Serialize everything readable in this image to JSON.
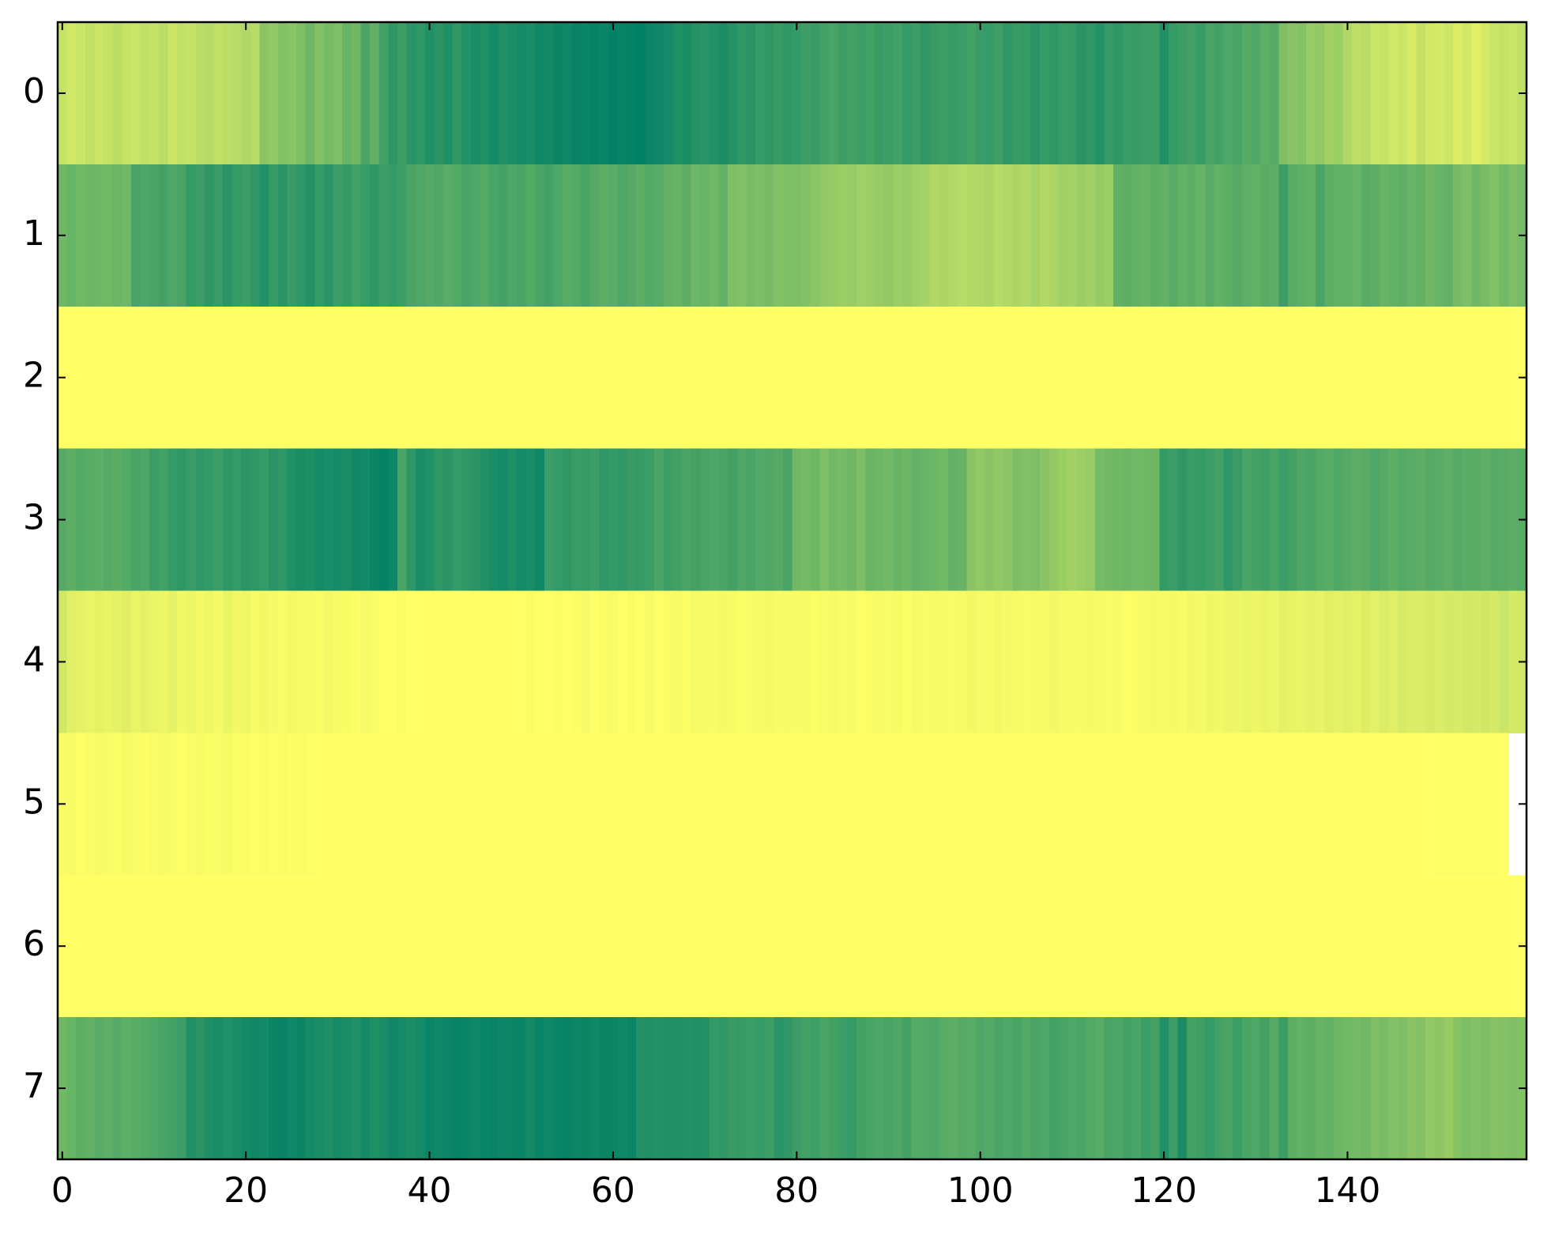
{
  "chart_data": {
    "type": "heatmap",
    "colormap": "summer",
    "xlim": [
      -0.5,
      159.5
    ],
    "ylim": [
      7.5,
      -0.5
    ],
    "xticks": [
      0,
      20,
      40,
      60,
      80,
      100,
      120,
      140
    ],
    "yticks": [
      0,
      1,
      2,
      3,
      4,
      5,
      6,
      7
    ],
    "z": [
      [
        0.78,
        0.82,
        0.8,
        0.76,
        0.8,
        0.78,
        0.74,
        0.78,
        0.8,
        0.76,
        0.78,
        0.74,
        0.8,
        0.76,
        0.78,
        0.74,
        0.72,
        0.76,
        0.74,
        0.72,
        0.7,
        0.72,
        0.55,
        0.58,
        0.52,
        0.55,
        0.5,
        0.44,
        0.52,
        0.48,
        0.5,
        0.42,
        0.45,
        0.3,
        0.4,
        0.28,
        0.2,
        0.25,
        0.18,
        0.2,
        0.15,
        0.18,
        0.14,
        0.2,
        0.16,
        0.12,
        0.15,
        0.1,
        0.14,
        0.12,
        0.1,
        0.12,
        0.08,
        0.1,
        0.06,
        0.08,
        0.05,
        0.06,
        0.04,
        0.06,
        0.03,
        0.05,
        0.04,
        0.02,
        0.06,
        0.08,
        0.1,
        0.14,
        0.12,
        0.16,
        0.18,
        0.15,
        0.12,
        0.16,
        0.2,
        0.18,
        0.22,
        0.2,
        0.24,
        0.2,
        0.22,
        0.26,
        0.24,
        0.28,
        0.3,
        0.26,
        0.28,
        0.25,
        0.28,
        0.24,
        0.26,
        0.28,
        0.22,
        0.25,
        0.2,
        0.24,
        0.26,
        0.22,
        0.25,
        0.28,
        0.24,
        0.22,
        0.26,
        0.2,
        0.24,
        0.22,
        0.18,
        0.22,
        0.2,
        0.24,
        0.22,
        0.18,
        0.2,
        0.16,
        0.22,
        0.2,
        0.24,
        0.22,
        0.25,
        0.26,
        0.15,
        0.22,
        0.25,
        0.28,
        0.24,
        0.3,
        0.28,
        0.32,
        0.3,
        0.35,
        0.32,
        0.38,
        0.35,
        0.5,
        0.55,
        0.52,
        0.6,
        0.58,
        0.65,
        0.62,
        0.7,
        0.75,
        0.72,
        0.8,
        0.78,
        0.82,
        0.8,
        0.85,
        0.78,
        0.82,
        0.84,
        0.8,
        0.86,
        0.82,
        0.88,
        0.84,
        0.8,
        0.78,
        0.8,
        0.76
      ],
      [
        0.45,
        0.42,
        0.46,
        0.44,
        0.45,
        0.46,
        0.43,
        0.45,
        0.3,
        0.32,
        0.3,
        0.28,
        0.32,
        0.3,
        0.22,
        0.25,
        0.2,
        0.24,
        0.18,
        0.22,
        0.25,
        0.2,
        0.15,
        0.22,
        0.18,
        0.24,
        0.2,
        0.16,
        0.22,
        0.18,
        0.25,
        0.22,
        0.28,
        0.24,
        0.2,
        0.25,
        0.22,
        0.26,
        0.3,
        0.32,
        0.35,
        0.33,
        0.36,
        0.34,
        0.3,
        0.32,
        0.35,
        0.3,
        0.28,
        0.32,
        0.3,
        0.34,
        0.3,
        0.28,
        0.32,
        0.36,
        0.34,
        0.3,
        0.35,
        0.38,
        0.36,
        0.32,
        0.35,
        0.38,
        0.34,
        0.36,
        0.4,
        0.42,
        0.38,
        0.44,
        0.42,
        0.45,
        0.4,
        0.5,
        0.52,
        0.48,
        0.5,
        0.48,
        0.52,
        0.5,
        0.5,
        0.52,
        0.55,
        0.58,
        0.6,
        0.62,
        0.6,
        0.64,
        0.62,
        0.6,
        0.58,
        0.62,
        0.6,
        0.64,
        0.66,
        0.7,
        0.68,
        0.7,
        0.72,
        0.7,
        0.7,
        0.68,
        0.72,
        0.7,
        0.68,
        0.7,
        0.66,
        0.7,
        0.68,
        0.64,
        0.66,
        0.62,
        0.64,
        0.6,
        0.62,
        0.4,
        0.38,
        0.4,
        0.42,
        0.38,
        0.4,
        0.36,
        0.4,
        0.38,
        0.42,
        0.36,
        0.4,
        0.38,
        0.35,
        0.38,
        0.4,
        0.36,
        0.38,
        0.25,
        0.36,
        0.38,
        0.4,
        0.3,
        0.38,
        0.4,
        0.4,
        0.42,
        0.36,
        0.38,
        0.42,
        0.4,
        0.38,
        0.42,
        0.4,
        0.45,
        0.42,
        0.4,
        0.48,
        0.5,
        0.45,
        0.48,
        0.52,
        0.46,
        0.5,
        0.48
      ],
      [
        1,
        1,
        1,
        1,
        1,
        1,
        1,
        1,
        1,
        1,
        1,
        1,
        1,
        1,
        1,
        1,
        1,
        1,
        1,
        1,
        1,
        1,
        1,
        1,
        1,
        1,
        1,
        1,
        1,
        1,
        1,
        1,
        1,
        1,
        1,
        1,
        1,
        1,
        1,
        1,
        1,
        1,
        1,
        1,
        1,
        1,
        1,
        1,
        1,
        1,
        1,
        1,
        1,
        1,
        1,
        1,
        1,
        1,
        1,
        1,
        1,
        1,
        1,
        1,
        1,
        1,
        1,
        1,
        1,
        1,
        1,
        1,
        1,
        1,
        1,
        1,
        1,
        1,
        1,
        1,
        1,
        1,
        1,
        1,
        1,
        1,
        1,
        1,
        1,
        1,
        1,
        1,
        1,
        1,
        1,
        1,
        1,
        1,
        1,
        1,
        1,
        1,
        1,
        1,
        1,
        1,
        1,
        1,
        1,
        1,
        1,
        1,
        1,
        1,
        1,
        1,
        1,
        1,
        1,
        1,
        1,
        1,
        1,
        1,
        1,
        1,
        1,
        1,
        1,
        1,
        1,
        1,
        1,
        1,
        1,
        1,
        1,
        1,
        1,
        1,
        1,
        1,
        1,
        1,
        1,
        1,
        1,
        1,
        1,
        1,
        1,
        1,
        1,
        1,
        1,
        1,
        1,
        1,
        1,
        1
      ],
      [
        0.35,
        0.38,
        0.34,
        0.36,
        0.38,
        0.35,
        0.37,
        0.34,
        0.3,
        0.32,
        0.25,
        0.28,
        0.22,
        0.2,
        0.24,
        0.2,
        0.22,
        0.25,
        0.2,
        0.22,
        0.18,
        0.2,
        0.22,
        0.18,
        0.2,
        0.15,
        0.12,
        0.14,
        0.1,
        0.12,
        0.1,
        0.12,
        0.08,
        0.1,
        0.06,
        0.04,
        0.08,
        0.3,
        0.2,
        0.12,
        0.15,
        0.2,
        0.18,
        0.22,
        0.2,
        0.18,
        0.15,
        0.12,
        0.1,
        0.14,
        0.1,
        0.12,
        0.08,
        0.25,
        0.22,
        0.2,
        0.24,
        0.22,
        0.25,
        0.2,
        0.22,
        0.2,
        0.24,
        0.22,
        0.26,
        0.3,
        0.25,
        0.28,
        0.3,
        0.28,
        0.3,
        0.32,
        0.3,
        0.28,
        0.32,
        0.3,
        0.34,
        0.32,
        0.35,
        0.3,
        0.45,
        0.48,
        0.44,
        0.5,
        0.46,
        0.48,
        0.45,
        0.5,
        0.42,
        0.44,
        0.46,
        0.42,
        0.44,
        0.4,
        0.42,
        0.44,
        0.46,
        0.4,
        0.42,
        0.55,
        0.58,
        0.55,
        0.58,
        0.56,
        0.5,
        0.52,
        0.5,
        0.55,
        0.58,
        0.62,
        0.65,
        0.62,
        0.6,
        0.48,
        0.46,
        0.45,
        0.44,
        0.46,
        0.45,
        0.44,
        0.22,
        0.25,
        0.2,
        0.24,
        0.22,
        0.25,
        0.28,
        0.2,
        0.24,
        0.3,
        0.28,
        0.26,
        0.3,
        0.25,
        0.28,
        0.32,
        0.3,
        0.34,
        0.36,
        0.32,
        0.35,
        0.38,
        0.36,
        0.32,
        0.35,
        0.38,
        0.34,
        0.36,
        0.38,
        0.35,
        0.36,
        0.38,
        0.35,
        0.37,
        0.36,
        0.38,
        0.35,
        0.36,
        0.38,
        0.36
      ],
      [
        0.82,
        0.88,
        0.9,
        0.92,
        0.9,
        0.92,
        0.9,
        0.88,
        0.92,
        0.9,
        0.92,
        0.94,
        0.9,
        0.95,
        0.93,
        0.96,
        0.94,
        0.96,
        0.92,
        0.95,
        0.94,
        0.97,
        0.95,
        0.96,
        0.98,
        0.95,
        0.97,
        0.96,
        0.98,
        0.95,
        0.97,
        0.98,
        0.99,
        0.96,
        0.98,
        1,
        1,
        0.98,
        1,
        1,
        1,
        1,
        1,
        1,
        1,
        1,
        1,
        1,
        1,
        1,
        1,
        0.98,
        0.99,
        1,
        0.98,
        1,
        0.99,
        0.97,
        1,
        0.98,
        0.97,
        1,
        0.98,
        0.99,
        0.97,
        1,
        0.98,
        0.97,
        0.99,
        0.96,
        0.97,
        0.98,
        0.96,
        0.97,
        0.99,
        0.98,
        0.97,
        0.96,
        0.98,
        0.97,
        0.98,
        0.97,
        0.99,
        0.98,
        0.96,
        0.98,
        0.97,
        0.99,
        0.98,
        0.97,
        0.98,
        0.97,
        0.99,
        0.97,
        0.98,
        0.96,
        0.97,
        0.98,
        0.97,
        0.95,
        0.96,
        0.97,
        0.95,
        0.96,
        0.97,
        0.98,
        0.96,
        0.97,
        0.95,
        0.96,
        0.97,
        0.98,
        0.96,
        0.97,
        0.98,
        0.97,
        0.99,
        0.98,
        0.97,
        0.96,
        0.97,
        0.96,
        0.98,
        0.95,
        0.96,
        0.94,
        0.95,
        0.93,
        0.94,
        0.92,
        0.94,
        0.92,
        0.93,
        0.9,
        0.91,
        0.92,
        0.9,
        0.91,
        0.88,
        0.9,
        0.88,
        0.9,
        0.87,
        0.89,
        0.86,
        0.88,
        0.85,
        0.87,
        0.86,
        0.84,
        0.86,
        0.84,
        0.85,
        0.83,
        0.84,
        0.82,
        0.84,
        0.8,
        0.84,
        0.82
      ],
      [
        0.98,
        0.97,
        0.99,
        0.98,
        0.97,
        0.98,
        0.99,
        0.97,
        0.98,
        0.99,
        0.98,
        0.97,
        0.98,
        0.99,
        0.98,
        0.97,
        0.99,
        0.98,
        0.97,
        0.99,
        0.98,
        0.99,
        0.98,
        0.99,
        0.98,
        0.99,
        0.98,
        0.99,
        1,
        1,
        1,
        1,
        1,
        1,
        1,
        1,
        1,
        1,
        1,
        1,
        1,
        1,
        1,
        1,
        1,
        1,
        1,
        1,
        1,
        1,
        1,
        1,
        1,
        1,
        1,
        1,
        1,
        1,
        1,
        1,
        1,
        1,
        1,
        1,
        1,
        1,
        1,
        1,
        1,
        1,
        1,
        1,
        1,
        1,
        1,
        1,
        1,
        1,
        1,
        1,
        1,
        1,
        1,
        1,
        1,
        1,
        1,
        1,
        1,
        1,
        1,
        1,
        1,
        1,
        1,
        1,
        1,
        1,
        1,
        1,
        1,
        1,
        1,
        1,
        1,
        1,
        1,
        1,
        1,
        1,
        1,
        1,
        1,
        1,
        1,
        1,
        1,
        1,
        1,
        1,
        1,
        1,
        1,
        1,
        1,
        1,
        1,
        1,
        1,
        1,
        1,
        1,
        1,
        1,
        1,
        1,
        1,
        1,
        1,
        1,
        1,
        1,
        1,
        1,
        1,
        1,
        1,
        1,
        1,
        1,
        0.99,
        0.99,
        0.99,
        0.99,
        0.99,
        0.99,
        0.99,
        1
      ],
      [
        1,
        1,
        1,
        1,
        1,
        1,
        1,
        1,
        1,
        1,
        1,
        1,
        1,
        1,
        1,
        1,
        1,
        1,
        1,
        1,
        1,
        1,
        1,
        1,
        1,
        1,
        1,
        1,
        1,
        1,
        1,
        1,
        1,
        1,
        1,
        1,
        1,
        1,
        1,
        1,
        1,
        1,
        1,
        1,
        1,
        1,
        1,
        1,
        1,
        1,
        1,
        1,
        1,
        1,
        1,
        1,
        1,
        1,
        1,
        1,
        1,
        1,
        1,
        1,
        1,
        1,
        1,
        1,
        1,
        1,
        1,
        1,
        1,
        1,
        1,
        1,
        1,
        1,
        1,
        1,
        1,
        1,
        1,
        1,
        1,
        1,
        1,
        1,
        1,
        1,
        1,
        1,
        1,
        1,
        1,
        1,
        1,
        1,
        1,
        1,
        1,
        1,
        1,
        1,
        1,
        1,
        1,
        1,
        1,
        1,
        1,
        1,
        1,
        1,
        1,
        1,
        1,
        1,
        1,
        1,
        1,
        1,
        1,
        1,
        1,
        1,
        1,
        1,
        1,
        1,
        1,
        1,
        1,
        1,
        1,
        1,
        1,
        1,
        1,
        1,
        1,
        1,
        1,
        1,
        1,
        1,
        1,
        1,
        1,
        1,
        1,
        1,
        1,
        1,
        1,
        1,
        1,
        1,
        1,
        1
      ],
      [
        0.45,
        0.42,
        0.38,
        0.4,
        0.36,
        0.38,
        0.35,
        0.38,
        0.36,
        0.34,
        0.32,
        0.3,
        0.28,
        0.25,
        0.15,
        0.18,
        0.14,
        0.12,
        0.15,
        0.12,
        0.1,
        0.08,
        0.1,
        0.06,
        0.05,
        0.08,
        0.06,
        0.1,
        0.12,
        0.14,
        0.1,
        0.12,
        0.15,
        0.1,
        0.14,
        0.12,
        0.08,
        0.1,
        0.12,
        0.1,
        0.06,
        0.08,
        0.06,
        0.05,
        0.06,
        0.08,
        0.06,
        0.05,
        0.07,
        0.06,
        0.06,
        0.1,
        0.06,
        0.08,
        0.06,
        0.05,
        0.07,
        0.06,
        0.08,
        0.06,
        0.06,
        0.08,
        0.06,
        0.16,
        0.14,
        0.16,
        0.15,
        0.14,
        0.16,
        0.15,
        0.16,
        0.22,
        0.2,
        0.24,
        0.22,
        0.25,
        0.22,
        0.26,
        0.18,
        0.2,
        0.25,
        0.28,
        0.26,
        0.3,
        0.28,
        0.25,
        0.22,
        0.28,
        0.3,
        0.32,
        0.3,
        0.32,
        0.28,
        0.35,
        0.34,
        0.32,
        0.36,
        0.38,
        0.35,
        0.36,
        0.32,
        0.34,
        0.3,
        0.32,
        0.3,
        0.34,
        0.3,
        0.32,
        0.28,
        0.3,
        0.32,
        0.3,
        0.34,
        0.36,
        0.3,
        0.32,
        0.28,
        0.3,
        0.25,
        0.28,
        0.15,
        0.25,
        0.12,
        0.28,
        0.26,
        0.22,
        0.28,
        0.3,
        0.26,
        0.3,
        0.32,
        0.28,
        0.35,
        0.25,
        0.38,
        0.4,
        0.38,
        0.42,
        0.4,
        0.44,
        0.46,
        0.48,
        0.45,
        0.5,
        0.48,
        0.52,
        0.5,
        0.55,
        0.52,
        0.58,
        0.56,
        0.6,
        0.54,
        0.5,
        0.52,
        0.5,
        0.54,
        0.52,
        0.5,
        0.52
      ]
    ]
  }
}
